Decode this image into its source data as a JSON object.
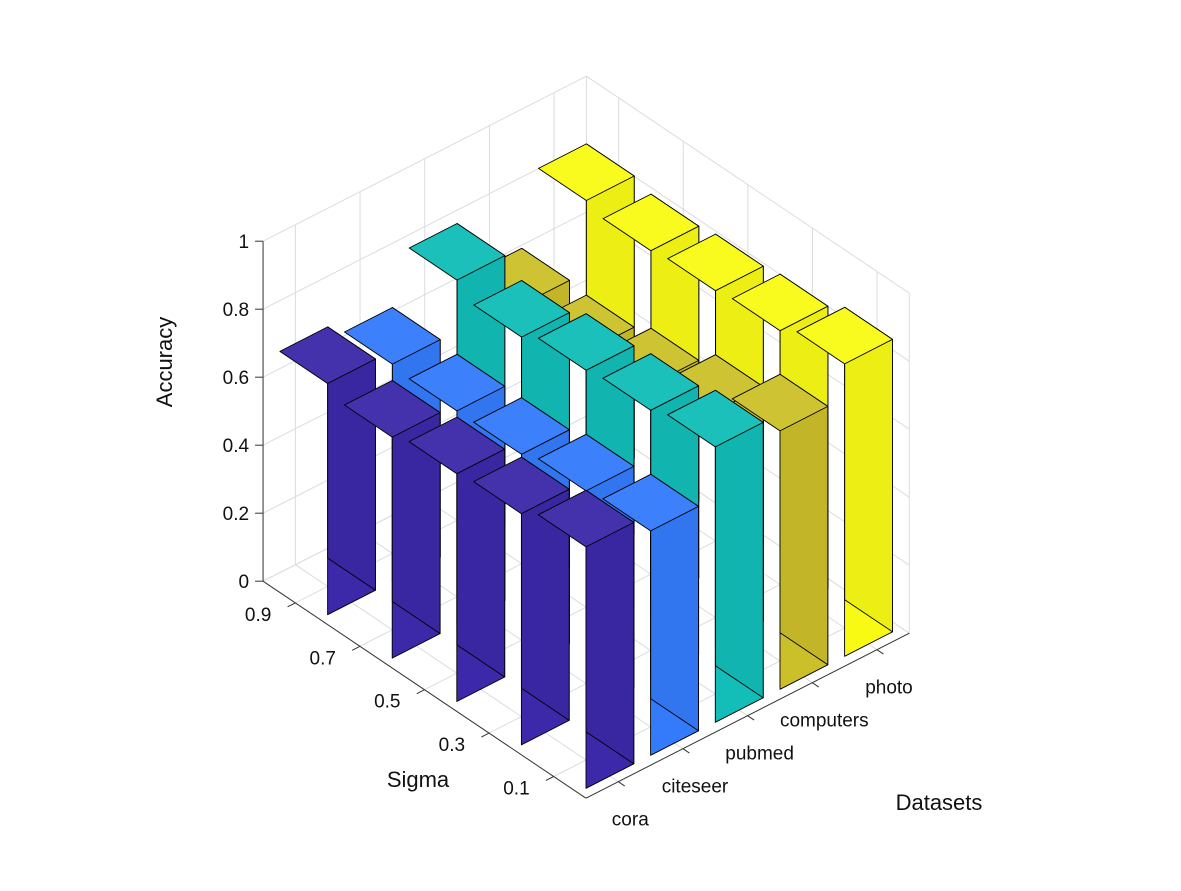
{
  "chart_data": {
    "type": "bar3d",
    "xlabel": "Datasets",
    "ylabel": "Sigma",
    "zlabel": "Accuracy",
    "datasets": [
      "cora",
      "citeseer",
      "pubmed",
      "computers",
      "photo"
    ],
    "sigma": [
      "0.1",
      "0.3",
      "0.5",
      "0.7",
      "0.9"
    ],
    "zticks": [
      "0",
      "0.2",
      "0.4",
      "0.6",
      "0.8",
      "1"
    ],
    "zlim": [
      0,
      1
    ],
    "colors": [
      "#3b29a9",
      "#347bfc",
      "#13bdb8",
      "#ccc02a",
      "#f9fa14"
    ],
    "series": [
      {
        "name": "cora",
        "values": [
          0.71,
          0.68,
          0.67,
          0.65,
          0.68
        ]
      },
      {
        "name": "citeseer",
        "values": [
          0.66,
          0.65,
          0.63,
          0.63,
          0.64
        ]
      },
      {
        "name": "pubmed",
        "values": [
          0.81,
          0.79,
          0.78,
          0.75,
          0.79
        ]
      },
      {
        "name": "computers",
        "values": [
          0.76,
          0.69,
          0.64,
          0.61,
          0.62
        ]
      },
      {
        "name": "photo",
        "values": [
          0.86,
          0.83,
          0.82,
          0.81,
          0.83
        ]
      }
    ],
    "grid": true
  }
}
